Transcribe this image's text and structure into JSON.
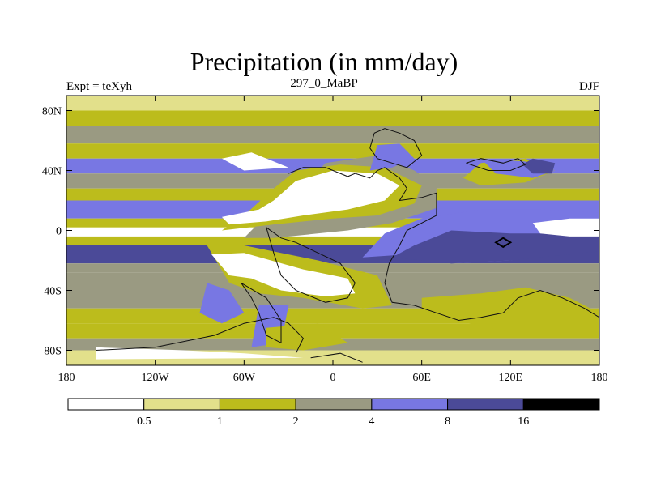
{
  "colors": {
    "white": "#ffffff",
    "pale_yellow": "#e2e08b",
    "olive": "#bcbc1c",
    "gray": "#9a9a82",
    "blue": "#7877e3",
    "dark_blue": "#4b4a98",
    "black": "#000000"
  },
  "chart_data": {
    "type": "heatmap",
    "title": "Precipitation (in mm/day)",
    "left_string": "Expt = teXyh",
    "center_string": "297_0_MaBP",
    "right_string": "DJF",
    "xlim": [
      -180,
      180
    ],
    "ylim": [
      -90,
      90
    ],
    "x_ticks": [
      {
        "value": -180,
        "label": "180"
      },
      {
        "value": -120,
        "label": "120W"
      },
      {
        "value": -60,
        "label": "60W"
      },
      {
        "value": 0,
        "label": "0"
      },
      {
        "value": 60,
        "label": "60E"
      },
      {
        "value": 120,
        "label": "120E"
      },
      {
        "value": 180,
        "label": "180"
      }
    ],
    "y_ticks": [
      {
        "value": 80,
        "label": "80N"
      },
      {
        "value": 40,
        "label": "40N"
      },
      {
        "value": 0,
        "label": "0"
      },
      {
        "value": -40,
        "label": "40S"
      },
      {
        "value": -80,
        "label": "80S"
      }
    ],
    "colorbar": {
      "levels": [
        "0.5",
        "1",
        "2",
        "4",
        "8",
        "16"
      ],
      "colors": [
        "#ffffff",
        "#e2e08b",
        "#bcbc1c",
        "#9a9a82",
        "#7877e3",
        "#4b4a98",
        "#000000"
      ]
    },
    "zonal_bands": [
      {
        "lat": [
          80,
          90
        ],
        "class": 1
      },
      {
        "lat": [
          70,
          80
        ],
        "class": 2
      },
      {
        "lat": [
          58,
          70
        ],
        "class": 3
      },
      {
        "lat": [
          48,
          58
        ],
        "class": 2
      },
      {
        "lat": [
          38,
          48
        ],
        "class": 4
      },
      {
        "lat": [
          28,
          38
        ],
        "class": 3
      },
      {
        "lat": [
          20,
          28
        ],
        "class": 2
      },
      {
        "lat": [
          8,
          20
        ],
        "class": 4
      },
      {
        "lat": [
          2,
          8
        ],
        "class": 2
      },
      {
        "lat": [
          -4,
          2
        ],
        "class": 0
      },
      {
        "lat": [
          -10,
          -4
        ],
        "class": 2
      },
      {
        "lat": [
          -22,
          -10
        ],
        "class": 5
      },
      {
        "lat": [
          -28,
          -22
        ],
        "class": 3
      },
      {
        "lat": [
          -52,
          -28
        ],
        "class": 3
      },
      {
        "lat": [
          -62,
          -52
        ],
        "class": 2
      },
      {
        "lat": [
          -72,
          -62
        ],
        "class": 2
      },
      {
        "lat": [
          -80,
          -72
        ],
        "class": 3
      },
      {
        "lat": [
          -90,
          -80
        ],
        "class": 1
      }
    ],
    "regions": [
      {
        "class": 3,
        "points": [
          [
            -30,
            20
          ],
          [
            -5,
            45
          ],
          [
            30,
            50
          ],
          [
            55,
            40
          ],
          [
            70,
            30
          ],
          [
            70,
            15
          ],
          [
            40,
            5
          ],
          [
            10,
            0
          ],
          [
            -40,
            -5
          ],
          [
            -60,
            -5
          ],
          [
            -50,
            5
          ]
        ]
      },
      {
        "class": 2,
        "points": [
          [
            -40,
            28
          ],
          [
            -25,
            40
          ],
          [
            5,
            44
          ],
          [
            35,
            42
          ],
          [
            60,
            30
          ],
          [
            55,
            18
          ],
          [
            30,
            10
          ],
          [
            0,
            8
          ],
          [
            -40,
            4
          ],
          [
            -75,
            0
          ],
          [
            -60,
            10
          ]
        ]
      },
      {
        "class": 0,
        "points": [
          [
            -40,
            20
          ],
          [
            -25,
            33
          ],
          [
            0,
            40
          ],
          [
            30,
            38
          ],
          [
            45,
            30
          ],
          [
            35,
            20
          ],
          [
            10,
            14
          ],
          [
            -20,
            10
          ],
          [
            -45,
            6
          ],
          [
            -70,
            4
          ],
          [
            -75,
            9
          ],
          [
            -50,
            14
          ]
        ]
      },
      {
        "class": 0,
        "points": [
          [
            -75,
            48
          ],
          [
            -60,
            40
          ],
          [
            -30,
            42
          ],
          [
            -55,
            52
          ]
        ]
      },
      {
        "class": 4,
        "points": [
          [
            25,
            40
          ],
          [
            30,
            57
          ],
          [
            45,
            58
          ],
          [
            55,
            48
          ],
          [
            40,
            42
          ]
        ]
      },
      {
        "class": 2,
        "points": [
          [
            88,
            35
          ],
          [
            100,
            45
          ],
          [
            130,
            48
          ],
          [
            150,
            40
          ],
          [
            130,
            32
          ],
          [
            100,
            30
          ]
        ]
      },
      {
        "class": 4,
        "points": [
          [
            100,
            48
          ],
          [
            130,
            46
          ],
          [
            150,
            40
          ],
          [
            135,
            35
          ],
          [
            110,
            38
          ]
        ]
      },
      {
        "class": 5,
        "points": [
          [
            128,
            44
          ],
          [
            135,
            48
          ],
          [
            150,
            45
          ],
          [
            148,
            38
          ],
          [
            135,
            38
          ]
        ]
      },
      {
        "class": 5,
        "points": [
          [
            70,
            8
          ],
          [
            95,
            12
          ],
          [
            140,
            10
          ],
          [
            180,
            8
          ],
          [
            180,
            2
          ],
          [
            140,
            0
          ],
          [
            100,
            4
          ]
        ]
      },
      {
        "class": 4,
        "points": [
          [
            20,
            -18
          ],
          [
            35,
            -2
          ],
          [
            60,
            8
          ],
          [
            100,
            14
          ],
          [
            140,
            14
          ],
          [
            180,
            12
          ],
          [
            180,
            -8
          ],
          [
            120,
            -20
          ],
          [
            80,
            -22
          ],
          [
            50,
            -16
          ]
        ]
      },
      {
        "class": 5,
        "points": [
          [
            40,
            -18
          ],
          [
            55,
            -10
          ],
          [
            80,
            0
          ],
          [
            120,
            -2
          ],
          [
            180,
            -2
          ],
          [
            180,
            -14
          ],
          [
            120,
            -20
          ],
          [
            80,
            -22
          ]
        ]
      },
      {
        "class": 0,
        "points": [
          [
            135,
            5
          ],
          [
            160,
            8
          ],
          [
            180,
            8
          ],
          [
            180,
            -4
          ],
          [
            160,
            -4
          ],
          [
            140,
            -2
          ]
        ]
      },
      {
        "class": 2,
        "points": [
          [
            -85,
            -10
          ],
          [
            -60,
            -10
          ],
          [
            -10,
            -20
          ],
          [
            30,
            -30
          ],
          [
            40,
            -50
          ],
          [
            20,
            -52
          ],
          [
            -20,
            -45
          ],
          [
            -50,
            -42
          ],
          [
            -70,
            -35
          ]
        ]
      },
      {
        "class": 0,
        "points": [
          [
            -82,
            -16
          ],
          [
            -60,
            -15
          ],
          [
            -20,
            -26
          ],
          [
            10,
            -32
          ],
          [
            15,
            -42
          ],
          [
            -5,
            -44
          ],
          [
            -35,
            -40
          ],
          [
            -55,
            -32
          ],
          [
            -70,
            -30
          ]
        ]
      },
      {
        "class": 2,
        "points": [
          [
            60,
            -45
          ],
          [
            100,
            -42
          ],
          [
            130,
            -38
          ],
          [
            160,
            -45
          ],
          [
            180,
            -55
          ],
          [
            180,
            -65
          ],
          [
            120,
            -68
          ],
          [
            60,
            -55
          ]
        ]
      },
      {
        "class": 4,
        "points": [
          [
            -85,
            -35
          ],
          [
            -70,
            -40
          ],
          [
            -60,
            -55
          ],
          [
            -75,
            -62
          ],
          [
            -90,
            -55
          ]
        ]
      },
      {
        "class": 4,
        "points": [
          [
            -50,
            -50
          ],
          [
            -30,
            -50
          ],
          [
            -35,
            -75
          ],
          [
            -55,
            -78
          ]
        ]
      },
      {
        "class": 2,
        "points": [
          [
            -45,
            -65
          ],
          [
            -10,
            -62
          ],
          [
            10,
            -75
          ],
          [
            -20,
            -80
          ],
          [
            -45,
            -78
          ]
        ]
      },
      {
        "class": 0,
        "points": [
          [
            -160,
            -78
          ],
          [
            -100,
            -80
          ],
          [
            -60,
            -82
          ],
          [
            -20,
            -85
          ],
          [
            -160,
            -86
          ]
        ]
      }
    ]
  }
}
